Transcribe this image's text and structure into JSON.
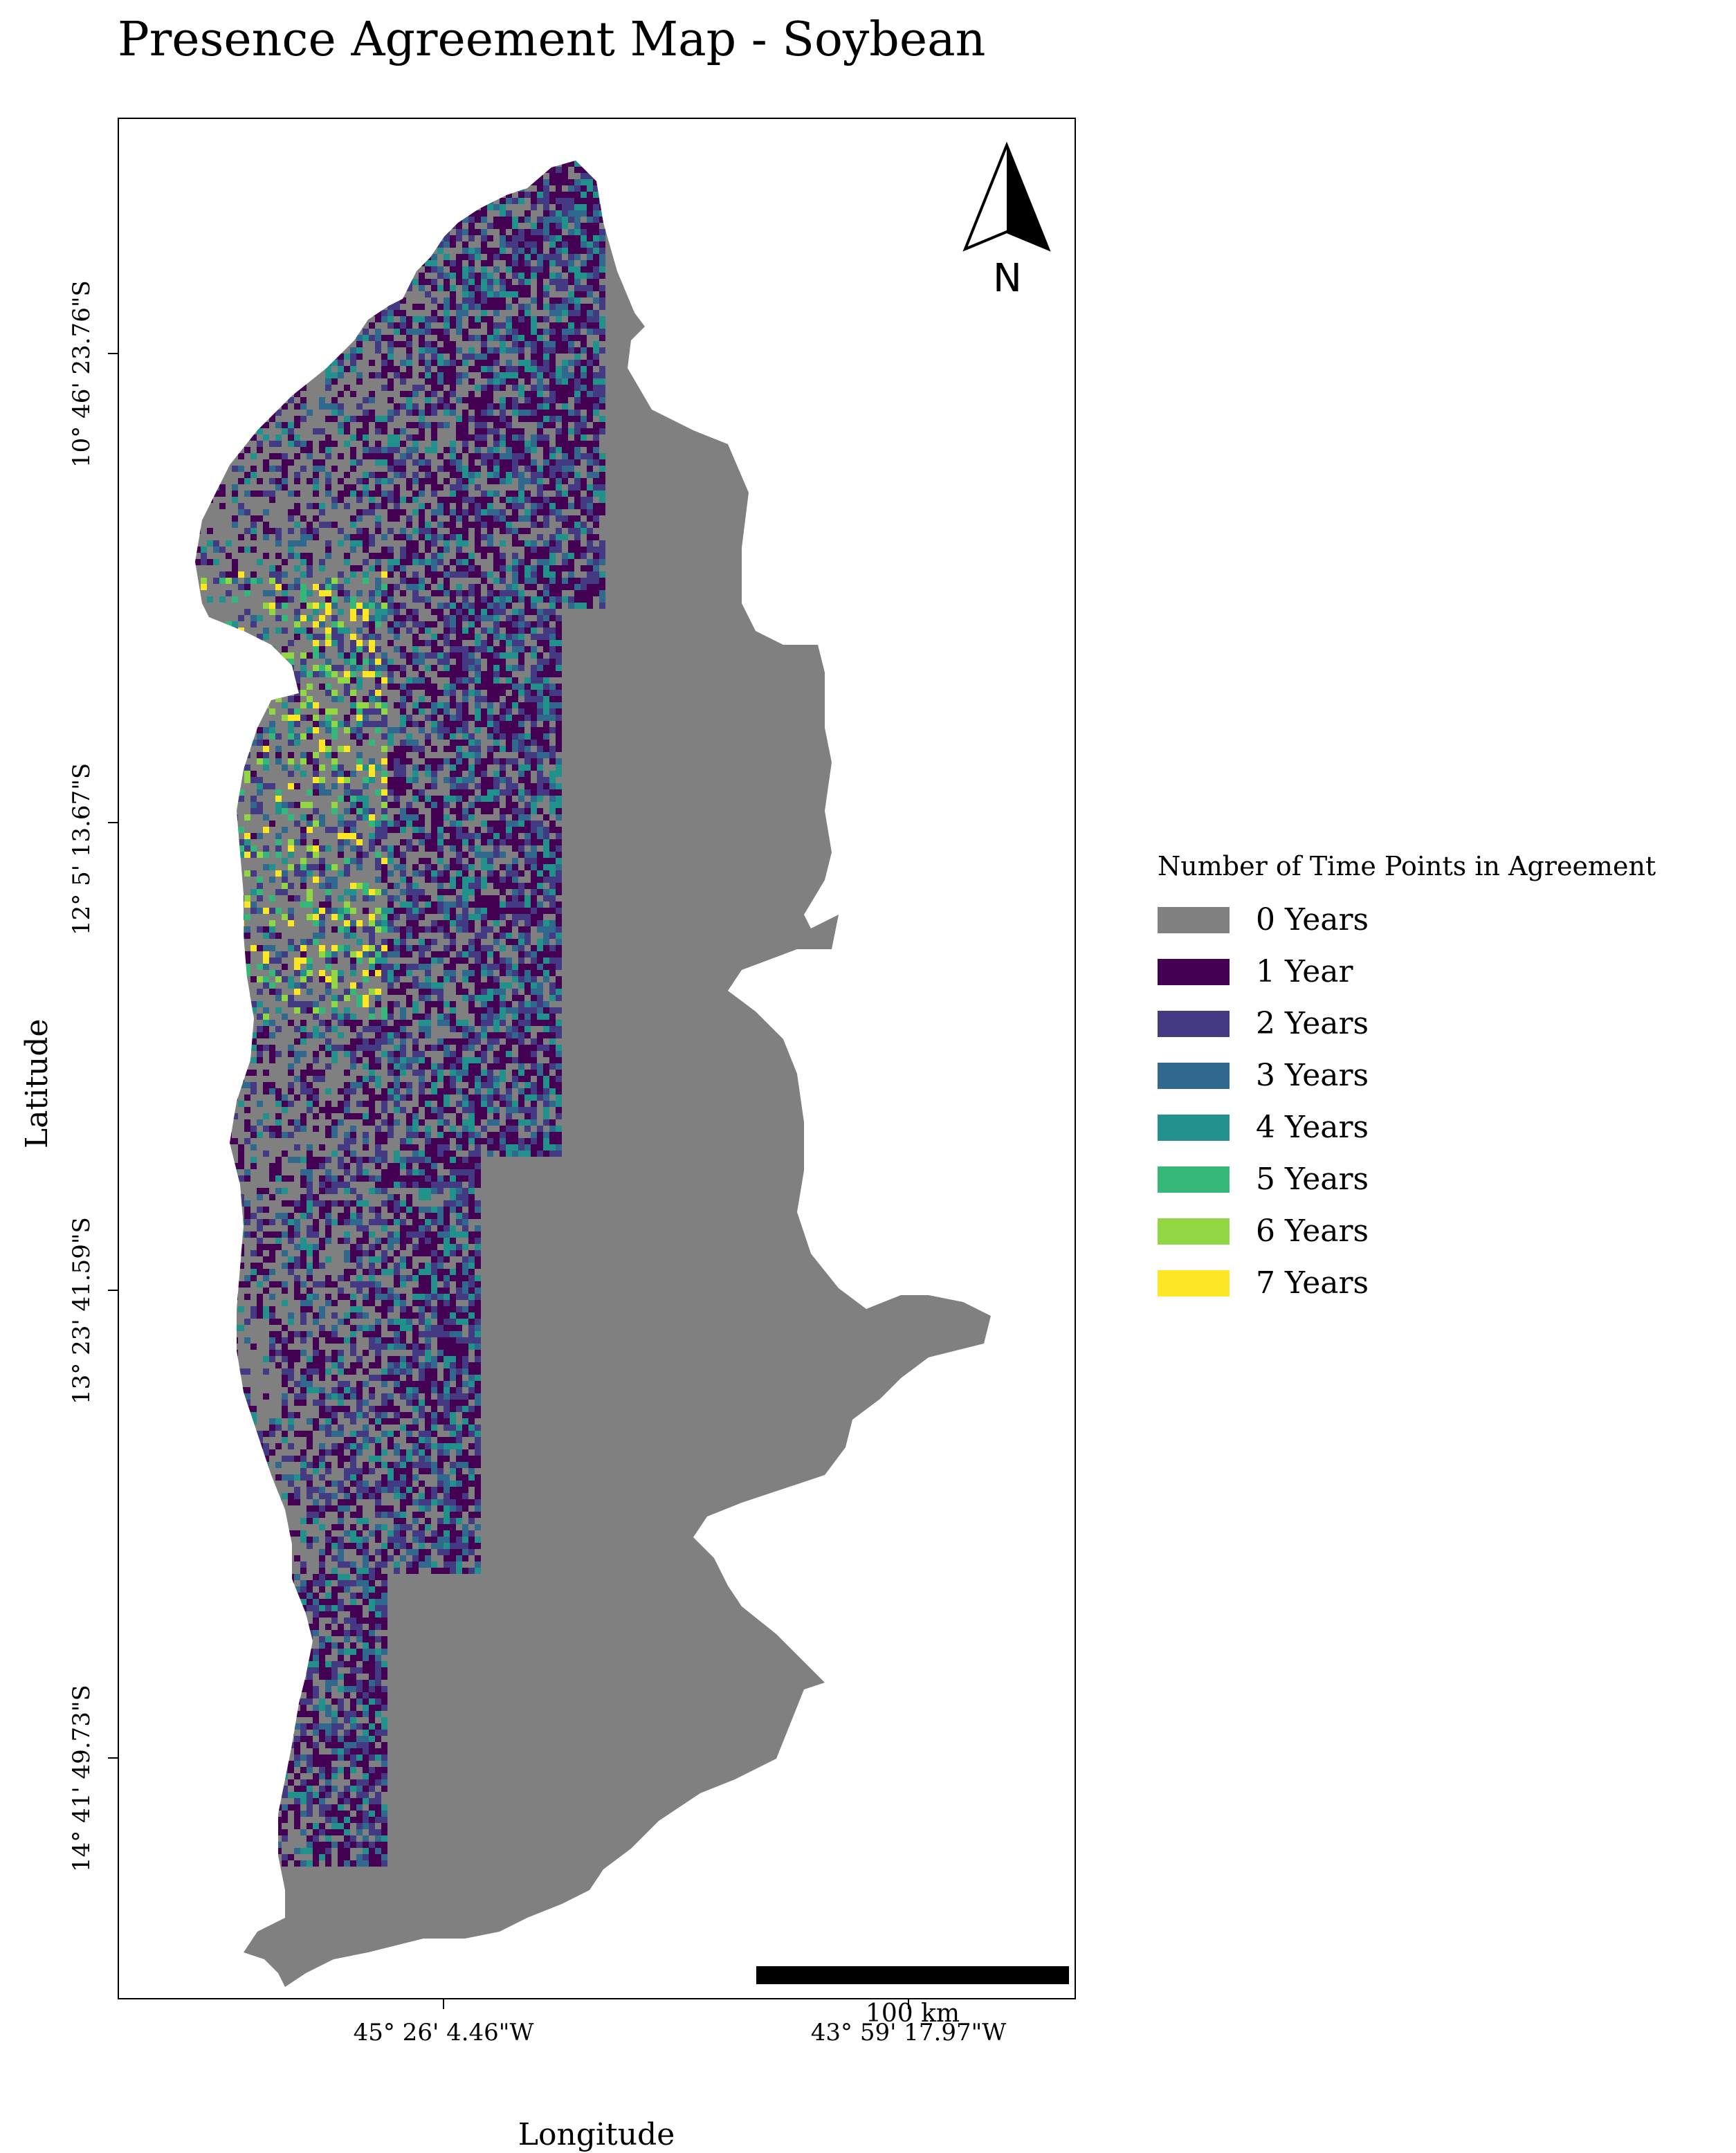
{
  "title": "Presence Agreement Map - Soybean",
  "axes": {
    "x_title": "Longitude",
    "y_title": "Latitude",
    "x_ticks": [
      "45° 26' 4.46\"W",
      "43° 59' 17.97\"W"
    ],
    "y_ticks": [
      "10° 46' 23.76\"S",
      "12° 5' 13.67\"S",
      "13° 23' 41.59\"S",
      "14° 41' 49.73\"S"
    ]
  },
  "north_arrow": {
    "label": "N",
    "icon": "north-arrow-icon"
  },
  "scale_bar": {
    "label": "100 km"
  },
  "legend": {
    "title": "Number of Time Points in Agreement",
    "items": [
      {
        "label": "0 Years",
        "color": "#808080"
      },
      {
        "label": "1 Year",
        "color": "#440154"
      },
      {
        "label": "2 Years",
        "color": "#443a83"
      },
      {
        "label": "3 Years",
        "color": "#31688e"
      },
      {
        "label": "4 Years",
        "color": "#21918c"
      },
      {
        "label": "5 Years",
        "color": "#35b779"
      },
      {
        "label": "6 Years",
        "color": "#90d743"
      },
      {
        "label": "7 Years",
        "color": "#fde725"
      }
    ]
  }
}
